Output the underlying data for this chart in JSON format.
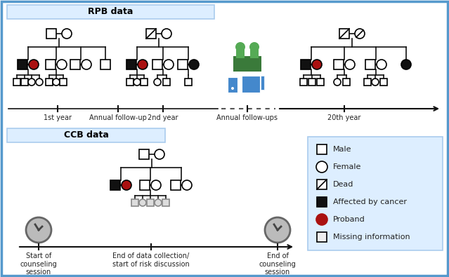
{
  "bg_color": "#f0f5fa",
  "border_color": "#5599cc",
  "label_bg": "#ddeeff",
  "label_border": "#aaccee",
  "title_rpb": "RPB data",
  "title_ccb": "CCB data",
  "rpb_timeline_labels": [
    "1st year",
    "Annual follow-up",
    "2nd year",
    "Annual follow-ups",
    "20th year"
  ],
  "ccb_timeline_labels": [
    "Start of\ncounseling\nsession",
    "End of data collection/\nstart of risk discussion",
    "End of\ncounseling\nsession"
  ],
  "legend_items": [
    [
      "Male",
      "sq_white"
    ],
    [
      "Female",
      "ci_white"
    ],
    [
      "Dead",
      "sq_dead"
    ],
    [
      "Affected by cancer",
      "sq_black"
    ],
    [
      "Proband",
      "ci_red"
    ],
    [
      "Missing information",
      "sq_missing"
    ]
  ],
  "proband_color": "#aa1111",
  "affected_color": "#111111",
  "missing_fill": "#dddddd",
  "line_color": "#111111",
  "clock_fill": "#bbbbbb",
  "clock_border": "#666666"
}
